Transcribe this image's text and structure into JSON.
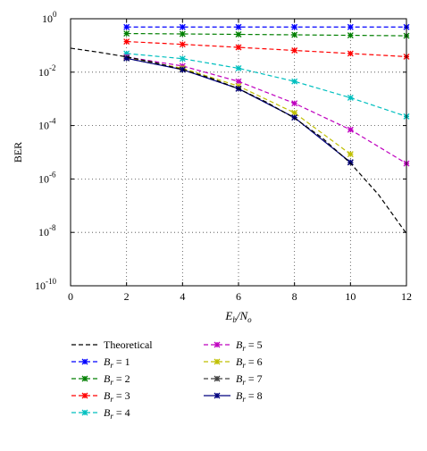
{
  "chart_data": {
    "type": "line",
    "title": "",
    "xlabel": "Eb/No",
    "ylabel": "BER",
    "xlim": [
      0,
      12
    ],
    "ylim": [
      1e-10,
      1
    ],
    "y_scale": "log",
    "grid": true,
    "x_ticks": [
      "0",
      "2",
      "4",
      "6",
      "8",
      "10",
      "12"
    ],
    "y_ticks": [
      {
        "base": "10",
        "exp": "0"
      },
      {
        "base": "10",
        "exp": "-2"
      },
      {
        "base": "10",
        "exp": "-4"
      },
      {
        "base": "10",
        "exp": "-6"
      },
      {
        "base": "10",
        "exp": "-8"
      },
      {
        "base": "10",
        "exp": "-10"
      }
    ],
    "legend_position": "below",
    "theoretical": {
      "name": "Theoretical",
      "color": "#000000",
      "x": [
        0,
        1,
        2,
        3,
        4,
        5,
        6,
        7,
        8,
        9,
        10,
        11,
        12
      ],
      "y": [
        0.079,
        0.056,
        0.0375,
        0.023,
        0.0125,
        0.006,
        0.0024,
        0.00075,
        0.00019,
        3.4e-05,
        3.9e-06,
        2.6e-07,
        9e-09
      ]
    },
    "series": [
      {
        "name": "Br = 1",
        "color": "#0000ff",
        "x": [
          2,
          4,
          6,
          8,
          10,
          12
        ],
        "y": [
          0.49,
          0.49,
          0.49,
          0.49,
          0.49,
          0.49
        ]
      },
      {
        "name": "Br = 2",
        "color": "#007f00",
        "x": [
          2,
          4,
          6,
          8,
          10,
          12
        ],
        "y": [
          0.28,
          0.27,
          0.26,
          0.25,
          0.24,
          0.23
        ]
      },
      {
        "name": "Br = 3",
        "color": "#ff0000",
        "x": [
          2,
          4,
          6,
          8,
          10,
          12
        ],
        "y": [
          0.14,
          0.11,
          0.085,
          0.065,
          0.05,
          0.038
        ]
      },
      {
        "name": "Br = 4",
        "color": "#00bfbf",
        "x": [
          2,
          4,
          6,
          8,
          10,
          12
        ],
        "y": [
          0.05,
          0.032,
          0.014,
          0.0045,
          0.0011,
          0.00022
        ]
      },
      {
        "name": "Br = 5",
        "color": "#bf00bf",
        "x": [
          2,
          4,
          6,
          8,
          10,
          12
        ],
        "y": [
          0.037,
          0.017,
          0.0045,
          0.00068,
          7e-05,
          3.8e-06
        ]
      },
      {
        "name": "Br = 6",
        "color": "#bfbf00",
        "x": [
          2,
          4,
          6,
          8,
          10
        ],
        "y": [
          0.034,
          0.014,
          0.003,
          0.0003,
          8.5e-06
        ]
      },
      {
        "name": "Br = 7",
        "color": "#404040",
        "x": [
          2,
          4,
          6,
          8,
          10
        ],
        "y": [
          0.033,
          0.0125,
          0.0024,
          0.0002,
          4.2e-06
        ]
      },
      {
        "name": "Br = 8",
        "color": "#00007f",
        "x": [
          2,
          4,
          6,
          8,
          10
        ],
        "y": [
          0.033,
          0.0125,
          0.0024,
          0.0002,
          4.2e-06
        ]
      }
    ],
    "legend": {
      "theoretical_label": "Theoretical",
      "br_symbol": "B",
      "br_subscript": "r",
      "br_equals": "="
    }
  }
}
